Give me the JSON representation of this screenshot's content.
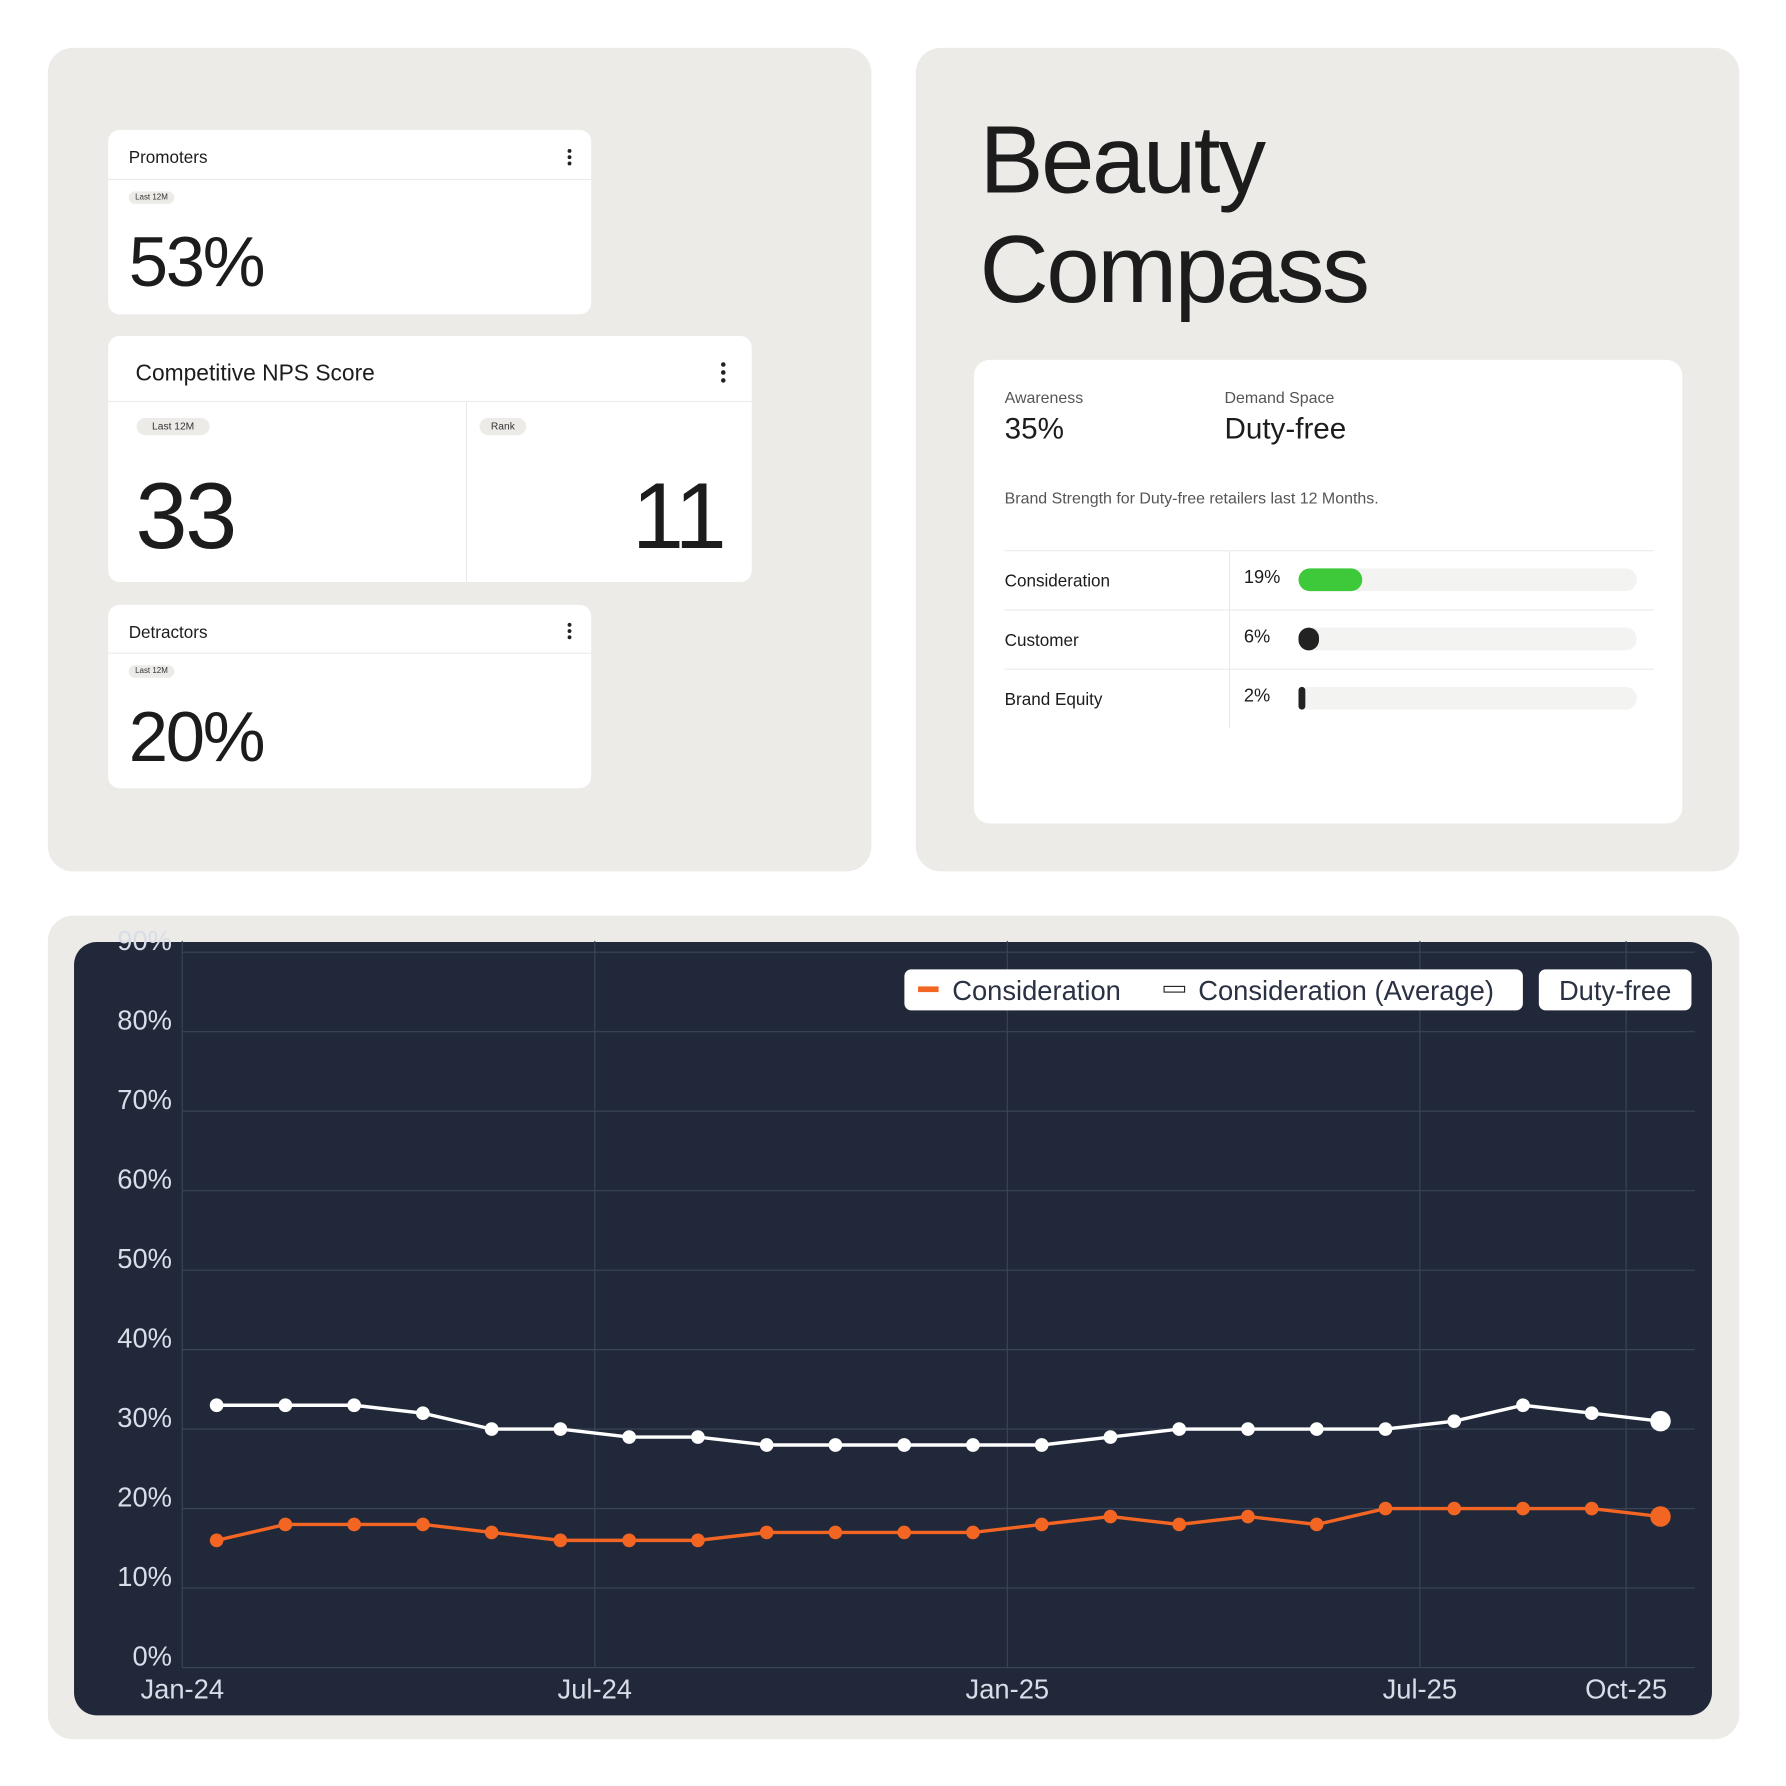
{
  "promoters": {
    "title": "Promoters",
    "badge": "Last 12M",
    "value": "53%"
  },
  "nps": {
    "title": "Competitive NPS Score",
    "badge": "Last 12M",
    "value": "33",
    "rank_badge": "Rank",
    "rank": "11"
  },
  "detractors": {
    "title": "Detractors",
    "badge": "Last 12M",
    "value": "20%"
  },
  "brand": {
    "title": "Beauty Compass",
    "awareness_label": "Awareness",
    "awareness": "35%",
    "demand_label": "Demand Space",
    "demand": "Duty-free",
    "description": "Brand Strength for Duty-free retailers last 12 Months.",
    "xlim": [
      0,
      100
    ],
    "rows": [
      {
        "name": "Consideration",
        "value": 19,
        "value_label": "19%",
        "color": "#3ec93a"
      },
      {
        "name": "Customer",
        "value": 6,
        "value_label": "6%",
        "color": "#222222"
      },
      {
        "name": "Brand Equity",
        "value": 2,
        "value_label": "2%",
        "color": "#222222"
      }
    ]
  },
  "chart_data": {
    "type": "line",
    "filter": "Duty-free",
    "categories": [
      "Jan-24",
      null,
      null,
      null,
      null,
      null,
      "Jul-24",
      null,
      null,
      null,
      null,
      null,
      "Jan-25",
      null,
      null,
      null,
      null,
      null,
      "Jul-25",
      null,
      null,
      "Oct-25"
    ],
    "series": [
      {
        "name": "Consideration",
        "color": "#f26522",
        "values": [
          16,
          18,
          18,
          18,
          17,
          16,
          16,
          16,
          17,
          17,
          17,
          17,
          18,
          19,
          18,
          19,
          18,
          20,
          20,
          20,
          20,
          19
        ]
      },
      {
        "name": "Consideration (Average)",
        "color": "#ffffff",
        "values": [
          33,
          33,
          33,
          32,
          30,
          30,
          29,
          29,
          28,
          28,
          28,
          28,
          28,
          29,
          30,
          30,
          30,
          30,
          31,
          33,
          32,
          31
        ]
      }
    ],
    "ylim": [
      0,
      90
    ],
    "yticks": [
      {
        "value": 0,
        "label": "0%"
      },
      {
        "value": 10,
        "label": "10%"
      },
      {
        "value": 20,
        "label": "20%"
      },
      {
        "value": 30,
        "label": "30%"
      },
      {
        "value": 40,
        "label": "40%"
      },
      {
        "value": 50,
        "label": "50%"
      },
      {
        "value": 60,
        "label": "60%"
      },
      {
        "value": 70,
        "label": "70%"
      },
      {
        "value": 80,
        "label": "80%"
      },
      {
        "value": 90,
        "label": "90%"
      }
    ],
    "grid": true
  }
}
